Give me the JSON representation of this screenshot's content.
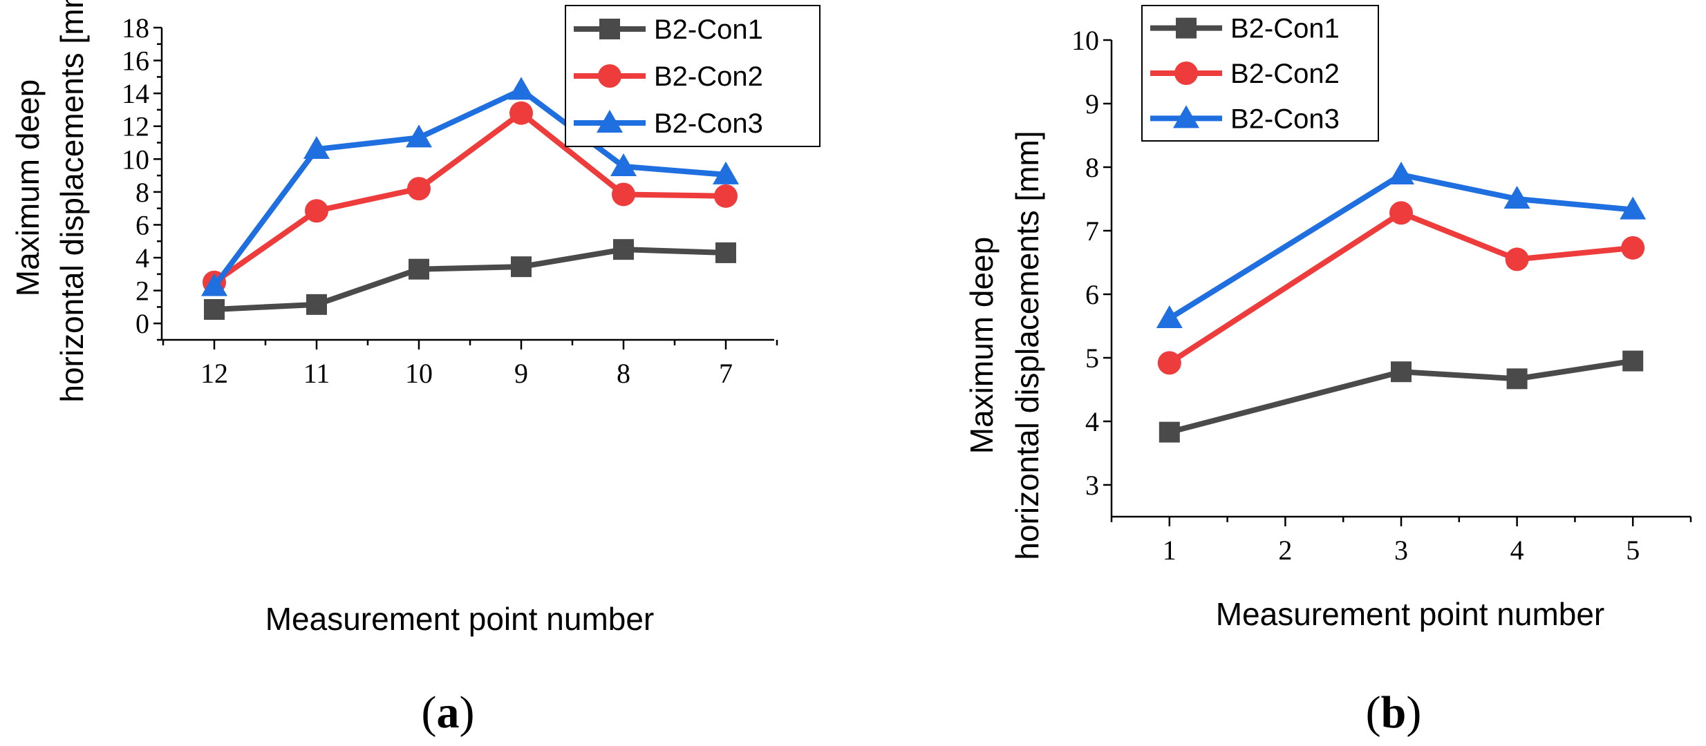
{
  "chart_data": [
    {
      "type": "line",
      "panel": "(a)",
      "xlabel": "Measurement point number",
      "ylabel_line1": "Maximum deep",
      "ylabel_line2": "horizontal displacements [mm]",
      "ylim": [
        -1,
        18
      ],
      "yticks": [
        0,
        2,
        4,
        6,
        8,
        10,
        12,
        14,
        16,
        18
      ],
      "categories": [
        "12",
        "11",
        "10",
        "9",
        "8",
        "7"
      ],
      "legend_position": "top-right",
      "series": [
        {
          "name": "B2-Con1",
          "color": "#4a4a4a",
          "marker": "square",
          "values": [
            0.85,
            1.15,
            3.3,
            3.45,
            4.5,
            4.3
          ]
        },
        {
          "name": "B2-Con2",
          "color": "#ee3b3b",
          "marker": "circle",
          "values": [
            2.5,
            6.85,
            8.2,
            12.8,
            7.85,
            7.75
          ]
        },
        {
          "name": "B2-Con3",
          "color": "#1f6fe0",
          "marker": "triangle",
          "values": [
            2.25,
            10.6,
            11.3,
            14.2,
            9.55,
            9.05
          ]
        }
      ]
    },
    {
      "type": "line",
      "panel": "(b)",
      "xlabel": "Measurement point number",
      "ylabel_line1": "Maximum deep",
      "ylabel_line2": "horizontal displacements [mm]",
      "ylim": [
        2.5,
        10
      ],
      "yticks": [
        3,
        4,
        5,
        6,
        7,
        8,
        9,
        10
      ],
      "xlim": [
        0.5,
        5.5
      ],
      "xticks": [
        1,
        2,
        3,
        4,
        5
      ],
      "legend_position": "top-left",
      "series": [
        {
          "name": "B2-Con1",
          "color": "#4a4a4a",
          "marker": "square",
          "x": [
            1,
            3,
            4,
            5
          ],
          "values": [
            3.83,
            4.78,
            4.67,
            4.95
          ]
        },
        {
          "name": "B2-Con2",
          "color": "#ee3b3b",
          "marker": "circle",
          "x": [
            1,
            3,
            4,
            5
          ],
          "values": [
            4.92,
            7.28,
            6.55,
            6.73
          ]
        },
        {
          "name": "B2-Con3",
          "color": "#1f6fe0",
          "marker": "triangle",
          "x": [
            1,
            3,
            4,
            5
          ],
          "values": [
            5.62,
            7.88,
            7.5,
            7.33
          ]
        }
      ]
    }
  ]
}
